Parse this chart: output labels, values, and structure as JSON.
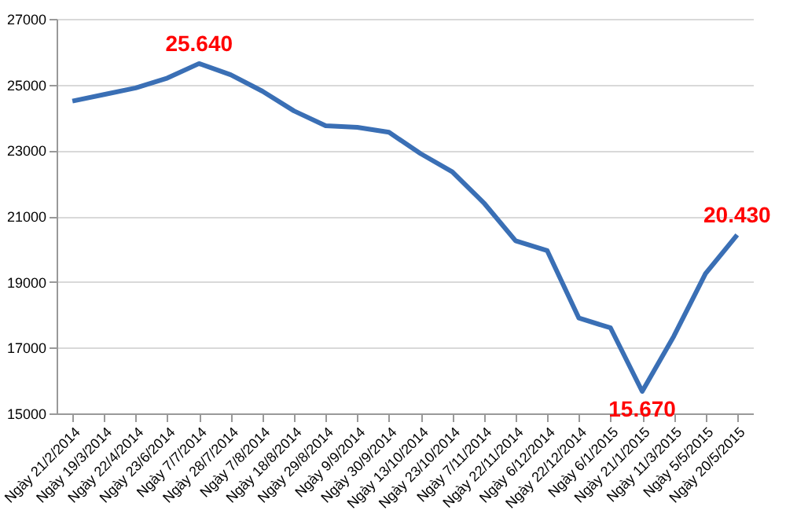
{
  "chart_data": {
    "type": "line",
    "categories": [
      "Ngày 21/2/2014",
      "Ngày 19/3/2014",
      "Ngày 22/4/2014",
      "Ngày 23/6/2014",
      "Ngày 7/7/2014",
      "Ngày 28/7/2014",
      "Ngày 7/8/2014",
      "Ngày 18/8/2014",
      "Ngày 29/8/2014",
      "Ngày 9/9/2014",
      "Ngày 30/9/2014",
      "Ngày 13/10/2014",
      "Ngày 23/10/2014",
      "Ngày 7/11/2014",
      "Ngày 22/11/2014",
      "Ngày 6/12/2014",
      "Ngày 22/12/2014",
      "Ngày 6/1/2015",
      "Ngày 21/1/2015",
      "Ngày 11/3/2015",
      "Ngày 5/5/2015",
      "Ngày 20/5/2015"
    ],
    "series": [
      {
        "color": "#3a6fb5",
        "values": [
          24500,
          24700,
          24900,
          25200,
          25640,
          25300,
          24800,
          24200,
          23750,
          23700,
          23550,
          22900,
          22350,
          21400,
          20250,
          19950,
          17900,
          17600,
          15670,
          17350,
          19250,
          20430
        ],
        "value_labels": [
          null,
          null,
          null,
          null,
          "25.640",
          null,
          null,
          null,
          null,
          null,
          null,
          null,
          null,
          null,
          null,
          null,
          null,
          null,
          "15.670",
          null,
          null,
          "20.430"
        ]
      }
    ],
    "ylim": [
      15000,
      27000
    ],
    "yticks": [
      15000,
      17000,
      19000,
      21000,
      23000,
      25000,
      27000
    ],
    "grid": "y",
    "marker": "none",
    "line_style": "solid"
  }
}
